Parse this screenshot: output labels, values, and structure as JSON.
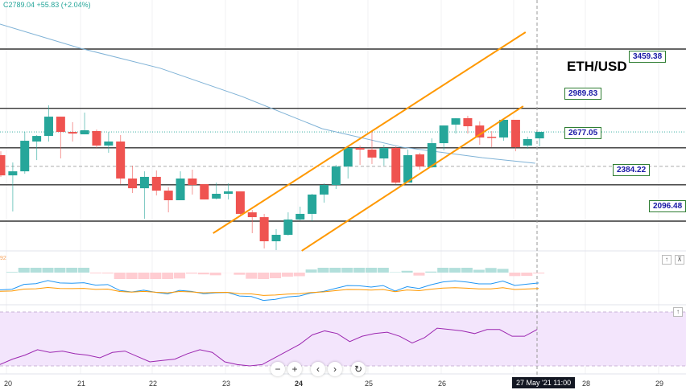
{
  "header": {
    "quote": "C2789.04  +55.83 (+2.04%)"
  },
  "colors": {
    "up": "#26a69a",
    "down": "#ef5350",
    "channel": "#ff9800",
    "ma": "#7fb2d6",
    "level": "#333333",
    "rsi": "#9c27b0",
    "rsi_bg": "#f3e5fc",
    "macd": "#2196f3",
    "signal": "#ff9800"
  },
  "chart_data": {
    "type": "candlestick",
    "title": "ETH/USD",
    "x_ticks": [
      "20",
      "21",
      "22",
      "23",
      "24",
      "25",
      "26",
      "28",
      "29"
    ],
    "crosshair_label": "27 May '21  11:00",
    "levels": [
      3459.38,
      2989.83,
      2677.05,
      2384.22,
      2096.48
    ],
    "level_labels": [
      "3459.38",
      "2989.83",
      "2677.05",
      "2384.22",
      "2096.48"
    ],
    "candles_ohlc": [
      [
        2619,
        2650,
        2447,
        2459
      ],
      [
        2459,
        2561,
        2173,
        2491
      ],
      [
        2491,
        2803,
        2472,
        2733
      ],
      [
        2727,
        2778,
        2580,
        2771
      ],
      [
        2771,
        3014,
        2727,
        2924
      ],
      [
        2924,
        2924,
        2593,
        2803
      ],
      [
        2803,
        2880,
        2727,
        2790
      ],
      [
        2784,
        2956,
        2784,
        2816
      ],
      [
        2810,
        2822,
        2676,
        2695
      ],
      [
        2695,
        2803,
        2638,
        2727
      ],
      [
        2727,
        2778,
        2389,
        2434
      ],
      [
        2434,
        2536,
        2319,
        2357
      ],
      [
        2357,
        2491,
        2115,
        2447
      ],
      [
        2447,
        2498,
        2300,
        2338
      ],
      [
        2338,
        2364,
        2166,
        2262
      ],
      [
        2262,
        2491,
        2262,
        2434
      ],
      [
        2434,
        2504,
        2307,
        2383
      ],
      [
        2389,
        2389,
        2268,
        2268
      ],
      [
        2275,
        2402,
        2268,
        2313
      ],
      [
        2313,
        2396,
        2268,
        2332
      ],
      [
        2332,
        2332,
        2141,
        2154
      ],
      [
        2166,
        2185,
        2001,
        2128
      ],
      [
        2128,
        2154,
        1880,
        1937
      ],
      [
        1937,
        2033,
        1867,
        1988
      ],
      [
        1988,
        2166,
        1982,
        2109
      ],
      [
        2109,
        2211,
        2103,
        2154
      ],
      [
        2154,
        2313,
        2096,
        2307
      ],
      [
        2307,
        2396,
        2243,
        2383
      ],
      [
        2383,
        2542,
        2351,
        2529
      ],
      [
        2529,
        2676,
        2434,
        2676
      ],
      [
        2676,
        2695,
        2542,
        2663
      ],
      [
        2663,
        2803,
        2549,
        2600
      ],
      [
        2593,
        2701,
        2536,
        2676
      ],
      [
        2676,
        2689,
        2389,
        2402
      ],
      [
        2402,
        2663,
        2402,
        2619
      ],
      [
        2625,
        2638,
        2504,
        2529
      ],
      [
        2523,
        2752,
        2517,
        2714
      ],
      [
        2714,
        2854,
        2657,
        2854
      ],
      [
        2861,
        2912,
        2790,
        2911
      ],
      [
        2912,
        2931,
        2790,
        2848
      ],
      [
        2854,
        2886,
        2701,
        2759
      ],
      [
        2765,
        2810,
        2682,
        2759
      ],
      [
        2759,
        2905,
        2733,
        2899
      ],
      [
        2899,
        2899,
        2650,
        2682
      ],
      [
        2695,
        2765,
        2670,
        2746
      ],
      [
        2752,
        2803,
        2689,
        2803
      ]
    ],
    "moving_average": [
      [
        0,
        3657
      ],
      [
        6.7,
        3466
      ],
      [
        13.4,
        3307
      ],
      [
        20.2,
        3084
      ],
      [
        26.9,
        2829
      ],
      [
        33.6,
        2682
      ],
      [
        40.3,
        2599
      ],
      [
        44.7,
        2555
      ]
    ],
    "channel_upper": [
      [
        17.8,
        2001
      ],
      [
        43.9,
        3593
      ]
    ],
    "channel_lower": [
      [
        25.2,
        1861
      ],
      [
        43.7,
        3007
      ]
    ],
    "dashed_level": 2530,
    "last_price": 2803,
    "rsi": [
      31,
      35,
      38,
      42,
      40,
      41,
      39,
      38,
      36,
      40,
      41,
      37,
      33,
      34,
      35,
      39,
      42,
      40,
      33,
      31,
      30,
      31,
      36,
      41,
      46,
      53,
      56,
      54,
      48,
      52,
      54,
      55,
      52,
      47,
      51,
      58,
      57,
      56,
      54,
      57,
      57,
      52,
      52,
      57
    ],
    "macd_label": "92"
  },
  "controls": {
    "zoom_out": "−",
    "zoom_in": "+",
    "prev": "‹",
    "next": "›",
    "reset": "↻",
    "up": "↑",
    "collapse": "⊼"
  }
}
